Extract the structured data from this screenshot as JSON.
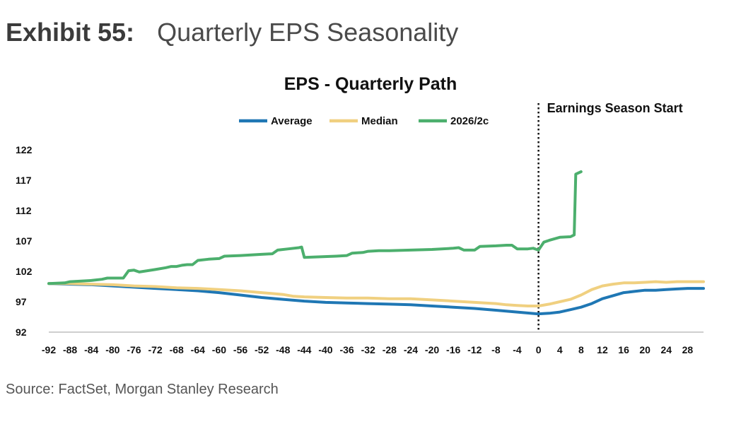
{
  "exhibit": {
    "number": "Exhibit 55:",
    "title": "Quarterly EPS Seasonality"
  },
  "source": "Source: FactSet, Morgan Stanley Research",
  "chart_data": {
    "type": "line",
    "title": "EPS - Quarterly Path",
    "xlabel": "",
    "ylabel": "",
    "xlim": [
      -92,
      31
    ],
    "ylim": [
      92,
      122
    ],
    "x_ticks": [
      -92,
      -88,
      -84,
      -80,
      -76,
      -72,
      -68,
      -64,
      -60,
      -56,
      -52,
      -48,
      -44,
      -40,
      -36,
      -32,
      -28,
      -24,
      -20,
      -16,
      -12,
      -8,
      -4,
      0,
      4,
      8,
      12,
      16,
      20,
      24,
      28
    ],
    "y_ticks": [
      92,
      97,
      102,
      107,
      112,
      117,
      122
    ],
    "grid": false,
    "legend_position": "top-center",
    "annotation": {
      "x": 0,
      "label": "Earnings Season Start",
      "style": "dotted-vertical-line"
    },
    "series": [
      {
        "name": "Average",
        "color": "#1f77b4",
        "points": [
          [
            -92,
            100
          ],
          [
            -88,
            99.9
          ],
          [
            -84,
            99.8
          ],
          [
            -80,
            99.6
          ],
          [
            -76,
            99.4
          ],
          [
            -72,
            99.2
          ],
          [
            -68,
            99
          ],
          [
            -64,
            98.8
          ],
          [
            -60,
            98.5
          ],
          [
            -56,
            98.1
          ],
          [
            -52,
            97.7
          ],
          [
            -48,
            97.4
          ],
          [
            -44,
            97.1
          ],
          [
            -40,
            96.9
          ],
          [
            -36,
            96.8
          ],
          [
            -32,
            96.7
          ],
          [
            -28,
            96.6
          ],
          [
            -24,
            96.5
          ],
          [
            -20,
            96.3
          ],
          [
            -16,
            96.1
          ],
          [
            -12,
            95.9
          ],
          [
            -8,
            95.6
          ],
          [
            -4,
            95.3
          ],
          [
            0,
            95
          ],
          [
            2,
            95.1
          ],
          [
            4,
            95.3
          ],
          [
            6,
            95.7
          ],
          [
            8,
            96.1
          ],
          [
            10,
            96.7
          ],
          [
            12,
            97.5
          ],
          [
            14,
            98
          ],
          [
            16,
            98.5
          ],
          [
            18,
            98.7
          ],
          [
            20,
            98.9
          ],
          [
            22,
            98.9
          ],
          [
            24,
            99
          ],
          [
            26,
            99.1
          ],
          [
            28,
            99.2
          ],
          [
            31,
            99.2
          ]
        ]
      },
      {
        "name": "Median",
        "color": "#f0d080",
        "points": [
          [
            -92,
            100
          ],
          [
            -88,
            100
          ],
          [
            -84,
            99.9
          ],
          [
            -80,
            99.8
          ],
          [
            -76,
            99.6
          ],
          [
            -72,
            99.5
          ],
          [
            -68,
            99.3
          ],
          [
            -64,
            99.2
          ],
          [
            -60,
            99
          ],
          [
            -56,
            98.8
          ],
          [
            -52,
            98.5
          ],
          [
            -48,
            98.2
          ],
          [
            -46,
            97.9
          ],
          [
            -44,
            97.8
          ],
          [
            -40,
            97.7
          ],
          [
            -36,
            97.6
          ],
          [
            -32,
            97.6
          ],
          [
            -28,
            97.5
          ],
          [
            -24,
            97.5
          ],
          [
            -20,
            97.3
          ],
          [
            -16,
            97.1
          ],
          [
            -12,
            96.9
          ],
          [
            -8,
            96.7
          ],
          [
            -6,
            96.5
          ],
          [
            -4,
            96.4
          ],
          [
            -2,
            96.3
          ],
          [
            0,
            96.3
          ],
          [
            2,
            96.6
          ],
          [
            4,
            97
          ],
          [
            6,
            97.4
          ],
          [
            8,
            98.1
          ],
          [
            10,
            99
          ],
          [
            12,
            99.6
          ],
          [
            14,
            99.9
          ],
          [
            16,
            100.1
          ],
          [
            18,
            100.1
          ],
          [
            20,
            100.2
          ],
          [
            22,
            100.3
          ],
          [
            24,
            100.2
          ],
          [
            26,
            100.3
          ],
          [
            28,
            100.3
          ],
          [
            31,
            100.3
          ]
        ]
      },
      {
        "name": "2026/2c",
        "color": "#4caf6d",
        "points": [
          [
            -92,
            100
          ],
          [
            -89,
            100.1
          ],
          [
            -88,
            100.3
          ],
          [
            -84,
            100.5
          ],
          [
            -82,
            100.7
          ],
          [
            -81,
            100.9
          ],
          [
            -78,
            100.9
          ],
          [
            -77,
            102.1
          ],
          [
            -76,
            102.2
          ],
          [
            -75,
            101.9
          ],
          [
            -72,
            102.3
          ],
          [
            -70,
            102.6
          ],
          [
            -69,
            102.8
          ],
          [
            -68,
            102.8
          ],
          [
            -67,
            103
          ],
          [
            -66,
            103.1
          ],
          [
            -65,
            103.1
          ],
          [
            -64,
            103.8
          ],
          [
            -62,
            104
          ],
          [
            -60,
            104.1
          ],
          [
            -59,
            104.5
          ],
          [
            -56,
            104.6
          ],
          [
            -54,
            104.7
          ],
          [
            -52,
            104.8
          ],
          [
            -50,
            104.9
          ],
          [
            -49,
            105.5
          ],
          [
            -47,
            105.7
          ],
          [
            -45,
            105.9
          ],
          [
            -44.5,
            106
          ],
          [
            -44,
            104.3
          ],
          [
            -41,
            104.4
          ],
          [
            -38,
            104.5
          ],
          [
            -36,
            104.6
          ],
          [
            -35,
            105
          ],
          [
            -33,
            105.1
          ],
          [
            -32,
            105.3
          ],
          [
            -30,
            105.4
          ],
          [
            -28,
            105.4
          ],
          [
            -24,
            105.5
          ],
          [
            -20,
            105.6
          ],
          [
            -16,
            105.8
          ],
          [
            -15,
            105.9
          ],
          [
            -14,
            105.5
          ],
          [
            -12,
            105.5
          ],
          [
            -11,
            106.1
          ],
          [
            -8,
            106.2
          ],
          [
            -6,
            106.3
          ],
          [
            -5,
            106.3
          ],
          [
            -4,
            105.7
          ],
          [
            -2,
            105.7
          ],
          [
            -1,
            105.8
          ],
          [
            0,
            105.5
          ],
          [
            1,
            106.8
          ],
          [
            2,
            107.1
          ],
          [
            4,
            107.6
          ],
          [
            6,
            107.7
          ],
          [
            6.7,
            108
          ],
          [
            7,
            118
          ],
          [
            8,
            118.4
          ]
        ]
      }
    ]
  }
}
